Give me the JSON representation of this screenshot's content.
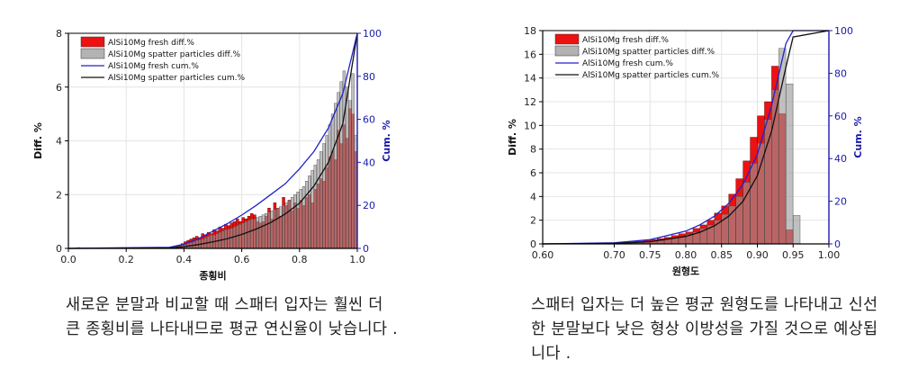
{
  "chart_data": [
    {
      "type": "bar",
      "xlabel": "종횡비",
      "ylabel": "Diff. %",
      "y2label": "Cum. %",
      "xlim": [
        0.0,
        1.0
      ],
      "ylim": [
        0,
        8
      ],
      "y2lim": [
        0,
        100
      ],
      "xticks": [
        "0.0",
        "0.2",
        "0.4",
        "0.6",
        "0.8",
        "1.0"
      ],
      "yticks": [
        "0",
        "2",
        "4",
        "6",
        "8"
      ],
      "y2ticks": [
        "0",
        "20",
        "40",
        "60",
        "80",
        "100"
      ],
      "grid": true,
      "legend_position": "top-left",
      "legend": [
        {
          "label": "AlSi10Mg fresh diff.%",
          "kind": "bar",
          "color": "#ee1111"
        },
        {
          "label": "AlSi10Mg spatter particles diff.%",
          "kind": "bar",
          "color": "#9a9a9a"
        },
        {
          "label": "AlSi10Mg fresh cum.%",
          "kind": "line",
          "color": "#2222cc"
        },
        {
          "label": "AlSi10Mg spatter particles cum.%",
          "kind": "line",
          "color": "#111111"
        }
      ],
      "bin_width": 0.01,
      "bin_start": 0.0,
      "fresh_diff": [
        0,
        0,
        0,
        0.03,
        0,
        0,
        0,
        0,
        0,
        0.02,
        0,
        0,
        0,
        0,
        0,
        0,
        0,
        0,
        0,
        0,
        0,
        0,
        0,
        0,
        0,
        0,
        0,
        0,
        0,
        0,
        0,
        0,
        0,
        0,
        0,
        0.02,
        0.04,
        0.08,
        0.12,
        0.18,
        0.25,
        0.3,
        0.35,
        0.4,
        0.45,
        0.4,
        0.55,
        0.5,
        0.6,
        0.55,
        0.7,
        0.65,
        0.8,
        0.75,
        0.9,
        0.85,
        0.95,
        1.0,
        1.1,
        1.0,
        1.15,
        1.1,
        1.2,
        1.3,
        1.25,
        1.0,
        0.95,
        1.0,
        1.2,
        1.5,
        1.1,
        1.7,
        1.5,
        1.2,
        1.9,
        1.6,
        1.8,
        1.4,
        1.7,
        1.5,
        1.8,
        1.6,
        1.9,
        2.0,
        1.7,
        2.2,
        2.4,
        2.6,
        2.5,
        3.0,
        3.4,
        3.6,
        3.3,
        4.4,
        3.9,
        4.6,
        4.1,
        5.2,
        5.0,
        3.6
      ],
      "spatter_diff": [
        0,
        0,
        0,
        0,
        0,
        0,
        0,
        0,
        0,
        0,
        0,
        0,
        0,
        0,
        0,
        0,
        0,
        0,
        0,
        0,
        0,
        0,
        0,
        0,
        0,
        0,
        0,
        0,
        0,
        0,
        0,
        0,
        0,
        0,
        0,
        0,
        0.03,
        0.05,
        0.08,
        0.12,
        0.15,
        0.2,
        0.22,
        0.25,
        0.3,
        0.32,
        0.35,
        0.4,
        0.45,
        0.5,
        0.5,
        0.55,
        0.6,
        0.65,
        0.7,
        0.72,
        0.75,
        0.8,
        0.85,
        0.9,
        0.95,
        1.0,
        1.05,
        1.1,
        1.1,
        1.15,
        1.2,
        1.25,
        1.3,
        1.35,
        1.4,
        1.45,
        1.5,
        1.55,
        1.6,
        1.7,
        1.8,
        1.9,
        2.0,
        2.1,
        2.2,
        2.3,
        2.5,
        2.7,
        2.9,
        3.1,
        3.3,
        3.6,
        3.9,
        4.2,
        4.6,
        5.0,
        5.4,
        5.8,
        6.2,
        6.6,
        6.0,
        5.5,
        6.5,
        4.2
      ],
      "fresh_cum": {
        "x": [
          0.0,
          0.35,
          0.4,
          0.45,
          0.5,
          0.55,
          0.6,
          0.65,
          0.7,
          0.75,
          0.8,
          0.85,
          0.9,
          0.95,
          1.0
        ],
        "y": [
          0,
          0.5,
          2,
          4.5,
          8,
          11.5,
          15.5,
          20,
          25,
          30,
          37,
          45,
          56,
          72,
          100
        ]
      },
      "spatter_cum": {
        "x": [
          0.0,
          0.35,
          0.4,
          0.45,
          0.5,
          0.55,
          0.6,
          0.65,
          0.7,
          0.75,
          0.8,
          0.85,
          0.9,
          0.95,
          1.0
        ],
        "y": [
          0,
          0.2,
          0.8,
          1.8,
          3,
          4.5,
          6.5,
          9,
          12,
          16,
          21,
          29,
          40,
          58,
          100
        ]
      }
    },
    {
      "type": "bar",
      "xlabel": "원형도",
      "ylabel": "Diff. %",
      "y2label": "Cum. %",
      "xlim": [
        0.6,
        1.0
      ],
      "ylim": [
        0,
        18
      ],
      "y2lim": [
        0,
        100
      ],
      "xticks": [
        "0.60",
        "0.70",
        "0.75",
        "0.80",
        "0.85",
        "0.90",
        "0.95",
        "1.00"
      ],
      "xtick_values": [
        0.6,
        0.7,
        0.75,
        0.8,
        0.85,
        0.9,
        0.95,
        1.0
      ],
      "yticks": [
        "0",
        "2",
        "4",
        "6",
        "8",
        "10",
        "12",
        "14",
        "16",
        "18"
      ],
      "y2ticks": [
        "0",
        "20",
        "40",
        "60",
        "80",
        "100"
      ],
      "grid": true,
      "legend_position": "top-left",
      "legend": [
        {
          "label": "AlSi10Mg fresh diff.%",
          "kind": "bar",
          "color": "#ee1111"
        },
        {
          "label": "AlSi10Mg spatter particles diff.%",
          "kind": "bar",
          "color": "#9a9a9a"
        },
        {
          "label": "AlSi10Mg fresh cum.%",
          "kind": "line",
          "color": "#2222cc"
        },
        {
          "label": "AlSi10Mg spatter particles cum.%",
          "kind": "line",
          "color": "#111111"
        }
      ],
      "bin_width": 0.01,
      "bin_start": 0.6,
      "fresh_diff": [
        0,
        0,
        0,
        0,
        0,
        0,
        0,
        0,
        0,
        0,
        0.05,
        0.1,
        0.15,
        0.2,
        0.3,
        0.35,
        0.45,
        0.55,
        0.7,
        0.85,
        1.0,
        1.3,
        1.6,
        2.0,
        2.6,
        3.2,
        4.2,
        5.5,
        7.0,
        9.0,
        10.8,
        12.0,
        15.0,
        11.0,
        1.2,
        0,
        0,
        0,
        0,
        0
      ],
      "spatter_diff": [
        0,
        0,
        0,
        0,
        0,
        0,
        0,
        0,
        0,
        0,
        0.02,
        0.05,
        0.08,
        0.12,
        0.18,
        0.25,
        0.3,
        0.4,
        0.5,
        0.6,
        0.8,
        1.0,
        1.3,
        1.6,
        2.0,
        2.5,
        3.2,
        4.0,
        5.2,
        6.8,
        8.5,
        10.5,
        13.0,
        16.5,
        13.5,
        2.4,
        0,
        0,
        0,
        0
      ],
      "fresh_cum": {
        "x": [
          0.6,
          0.7,
          0.75,
          0.8,
          0.82,
          0.84,
          0.86,
          0.88,
          0.9,
          0.92,
          0.94,
          0.95,
          1.0
        ],
        "y": [
          0,
          0.5,
          2,
          6,
          9,
          13,
          19,
          28,
          42,
          65,
          94,
          100,
          100
        ]
      },
      "spatter_cum": {
        "x": [
          0.6,
          0.7,
          0.75,
          0.8,
          0.82,
          0.84,
          0.86,
          0.88,
          0.9,
          0.92,
          0.94,
          0.95,
          1.0
        ],
        "y": [
          0,
          0.3,
          1,
          3.5,
          5.5,
          8.5,
          13,
          20,
          32,
          53,
          83,
          97,
          100
        ]
      }
    }
  ],
  "captions": {
    "left": "새로운 분말과 비교할 때 스패터 입자는 훨씬 더 큰 종횡비를 나타내므로 평균 연신율이 낮습니다 .",
    "right": "스패터 입자는 더 높은 평균 원형도를 나타내고 신선한 분말보다 낮은 형상 이방성을 가질 것으로 예상됩니다 ."
  },
  "colors": {
    "fresh_bar": "#ee1111",
    "spatter_bar": "#9a9a9a",
    "fresh_line": "#2222cc",
    "spatter_line": "#111111",
    "right_axis": "#1a1aaa",
    "grid": "#e4e4e4"
  }
}
